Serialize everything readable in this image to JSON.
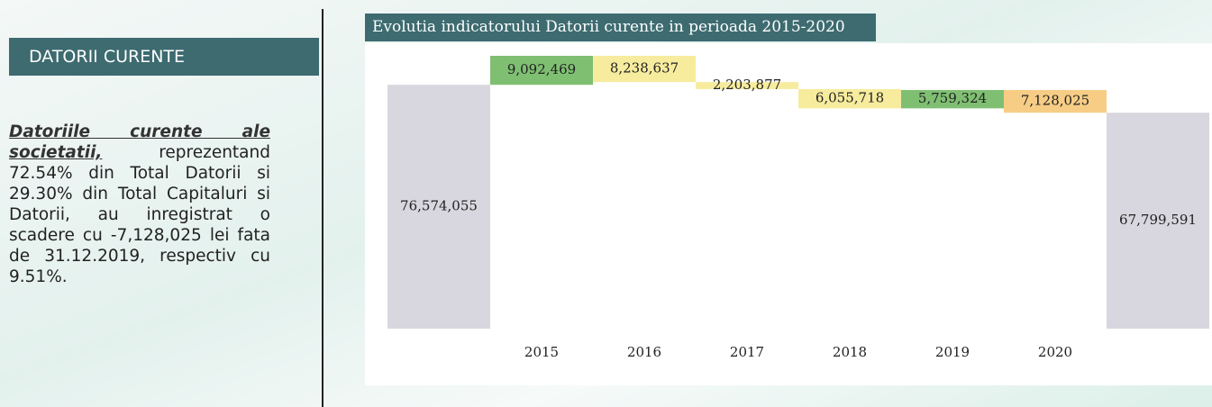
{
  "sidebar": {
    "title": "DATORII CURENTE",
    "lead": "Datoriile curente ale societatii,",
    "text": "reprezentand 72.54% din Total Datorii si 29.30% din Total Capitaluri si Datorii, au inregistrat o scadere cu -7,128,025 lei fata de 31.12.2019, respectiv cu 9.51%."
  },
  "chart_data": {
    "type": "waterfall",
    "title": "Evolutia indicatorului Datorii curente in perioada 2015-2020",
    "categories": [
      null,
      "2015",
      "2016",
      "2017",
      "2018",
      "2019",
      "2020",
      null
    ],
    "values": [
      76574055,
      9092469,
      -8238637,
      -2203877,
      -6055718,
      5759324,
      -7128025,
      67799591
    ],
    "value_labels": [
      "76,574,055",
      "9,092,469",
      "8,238,637",
      "2,203,877",
      "6,055,718",
      "5,759,324",
      "7,128,025",
      "67,799,591"
    ],
    "colors": [
      "#d8d6de",
      "#7fbf72",
      "#f7ec9e",
      "#f7ec9e",
      "#f7ec9e",
      "#7fbf72",
      "#f7cd85",
      "#d8d6de"
    ]
  }
}
